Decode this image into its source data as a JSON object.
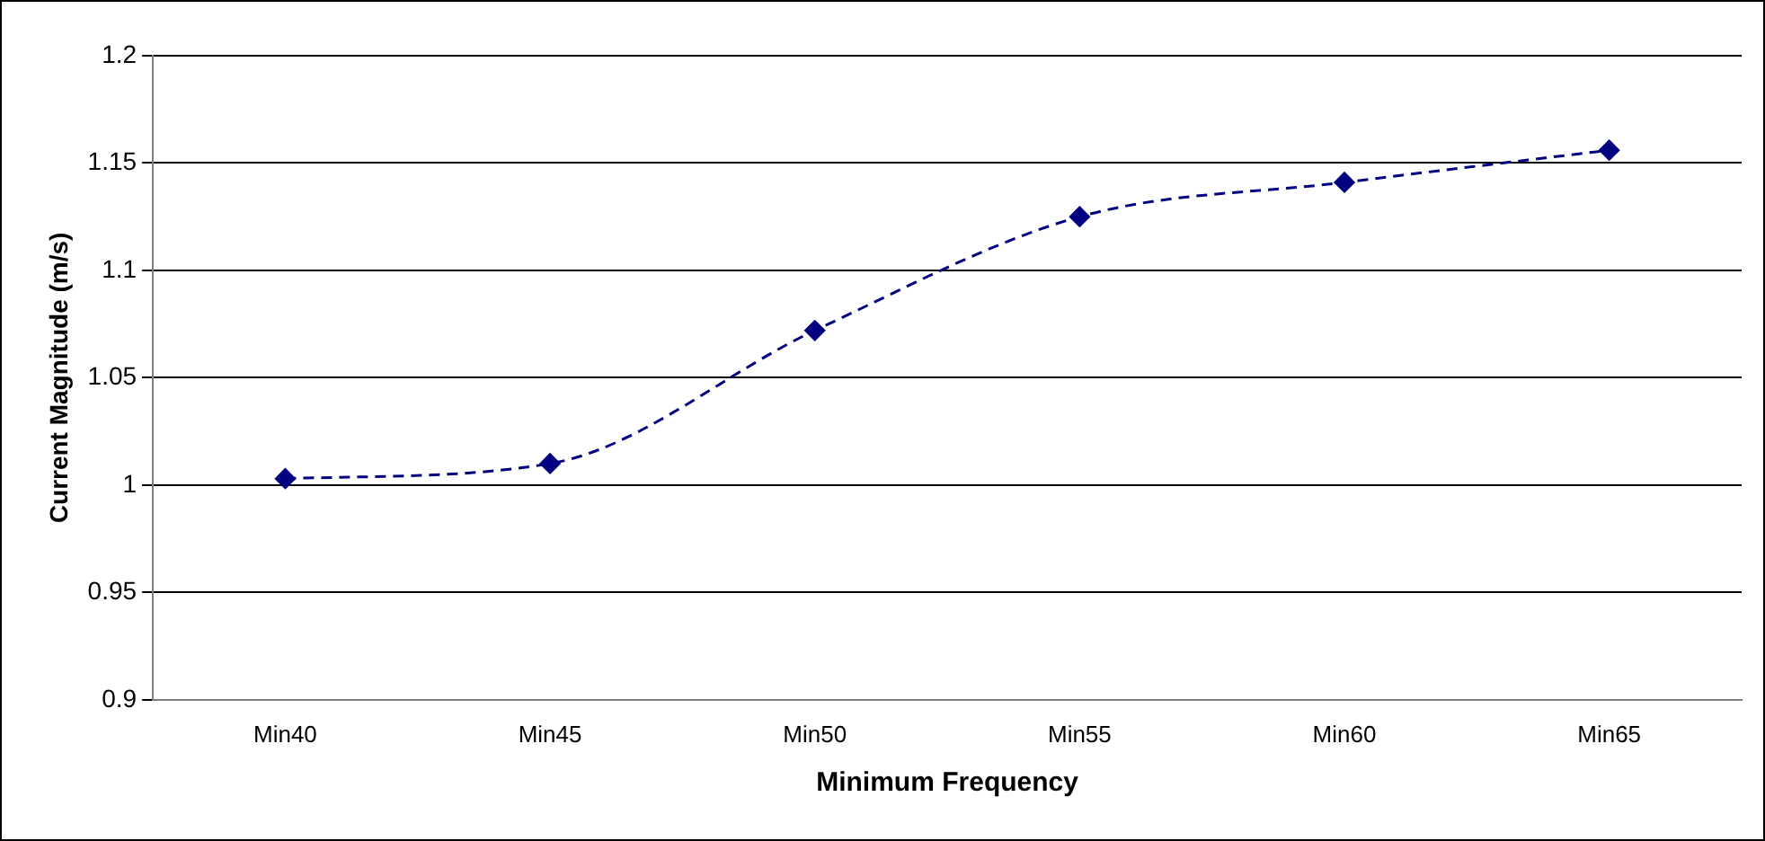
{
  "chart_data": {
    "type": "line",
    "xlabel": "Minimum Frequency",
    "ylabel": "Current Magnitude (m/s)",
    "categories": [
      "Min40",
      "Min45",
      "Min50",
      "Min55",
      "Min60",
      "Min65"
    ],
    "series": [
      {
        "color": "#000080",
        "values": [
          1.003,
          1.01,
          1.072,
          1.125,
          1.141,
          1.156
        ]
      }
    ],
    "ylim": [
      0.9,
      1.2
    ],
    "yticks": [
      0.9,
      0.95,
      1,
      1.05,
      1.1,
      1.15,
      1.2
    ],
    "grid": "y",
    "legend": false,
    "marker": "diamond",
    "line_style": "dashed"
  }
}
